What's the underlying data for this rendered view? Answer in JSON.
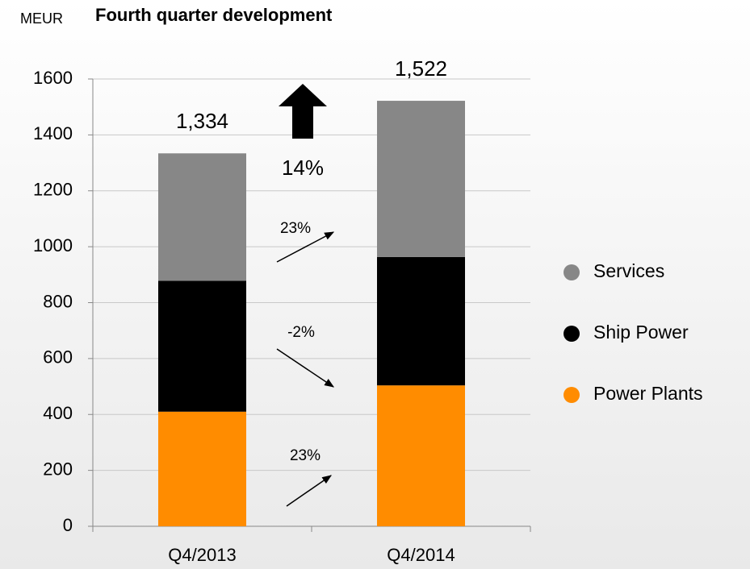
{
  "chart_data": {
    "type": "stacked_bar",
    "unit": "MEUR",
    "title": "Fourth quarter development",
    "categories": [
      "Q4/2013",
      "Q4/2014"
    ],
    "series": [
      {
        "name": "Power Plants",
        "color": "#ff8c00",
        "values": [
          410,
          504
        ]
      },
      {
        "name": "Ship Power",
        "color": "#000000",
        "values": [
          468,
          459
        ]
      },
      {
        "name": "Services",
        "color": "#878787",
        "values": [
          456,
          559
        ]
      }
    ],
    "totals": [
      1334,
      1522
    ],
    "total_labels": [
      "1,334",
      "1,522"
    ],
    "annotations": [
      "14%",
      "23%",
      "-2%",
      "23%"
    ],
    "ylim": [
      0,
      1600
    ],
    "yticks": [
      0,
      200,
      400,
      600,
      800,
      1000,
      1200,
      1400,
      1600
    ],
    "grid": true
  }
}
